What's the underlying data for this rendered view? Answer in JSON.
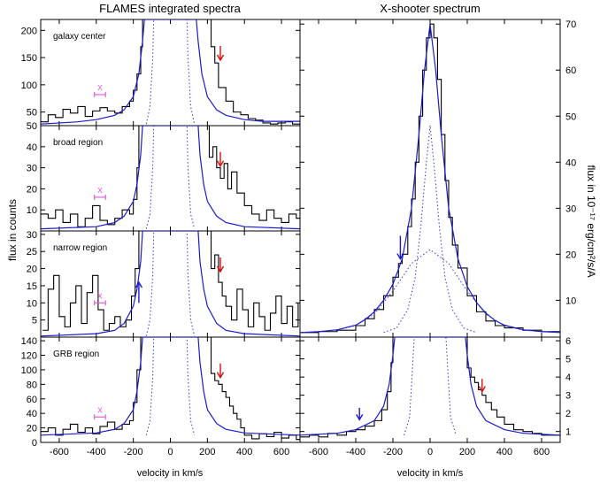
{
  "title_left": "FLAMES integrated spectra",
  "title_right": "X-shooter spectrum",
  "ylabel_left": "flux in counts",
  "ylabel_right": "flux in 10⁻¹⁷ erg/cm²/s/A",
  "xlabel": "velocity in km/s",
  "colors": {
    "data": "#000000",
    "fit": "#1a1ad0",
    "components": "#3333dd",
    "arrow_red": "#d01010",
    "arrow_blue": "#1a1ad0",
    "marker": "#e060e0"
  },
  "chart_data": [
    {
      "type": "line",
      "panel": "left-1",
      "label": "galaxy center",
      "xlim": [
        -700,
        700
      ],
      "ylim": [
        25,
        220
      ],
      "yticks": [
        50,
        100,
        150,
        200
      ],
      "xticks": [
        -600,
        -400,
        -200,
        0,
        200,
        400,
        600
      ],
      "marker": {
        "symbol": "x",
        "x": -380,
        "y": 82,
        "err": 30
      },
      "arrows": [
        {
          "color": "red",
          "x": 270,
          "direction": "down"
        }
      ],
      "series": [
        {
          "role": "data",
          "x": [
            -700,
            -660,
            -620,
            -580,
            -540,
            -500,
            -460,
            -420,
            -380,
            -340,
            -300,
            -260,
            -220,
            -200,
            -180,
            -160,
            -150,
            200,
            220,
            240,
            260,
            300,
            340,
            380,
            420,
            460,
            500,
            540,
            580,
            620,
            660,
            700
          ],
          "values": [
            32,
            45,
            40,
            55,
            48,
            60,
            42,
            52,
            58,
            52,
            48,
            60,
            70,
            90,
            120,
            170,
            220,
            220,
            170,
            140,
            95,
            70,
            50,
            45,
            38,
            35,
            30,
            28,
            30,
            32,
            28,
            30
          ]
        },
        {
          "role": "fit",
          "x": [
            -700,
            -500,
            -400,
            -300,
            -250,
            -200,
            -170,
            -150,
            -140,
            140,
            150,
            170,
            200,
            250,
            300,
            400,
            500,
            700
          ],
          "values": [
            28,
            32,
            36,
            44,
            54,
            78,
            120,
            180,
            220,
            220,
            180,
            120,
            78,
            54,
            44,
            36,
            33,
            33
          ]
        },
        {
          "role": "component",
          "x": [
            -130,
            -110,
            -95,
            -90,
            90,
            95,
            110,
            130
          ],
          "values": [
            28,
            60,
            150,
            220,
            220,
            150,
            60,
            28
          ]
        }
      ]
    },
    {
      "type": "line",
      "panel": "left-2",
      "label": "broad region",
      "xlim": [
        -700,
        700
      ],
      "ylim": [
        0,
        50
      ],
      "yticks": [
        10,
        20,
        30,
        40,
        50
      ],
      "xticks": [
        -600,
        -400,
        -200,
        0,
        200,
        400,
        600
      ],
      "marker": {
        "symbol": "x",
        "x": -380,
        "y": 16,
        "err": 30
      },
      "arrows": [
        {
          "color": "red",
          "x": 270,
          "direction": "down"
        }
      ],
      "series": [
        {
          "role": "data",
          "x": [
            -700,
            -660,
            -620,
            -580,
            -540,
            -500,
            -460,
            -420,
            -380,
            -340,
            -300,
            -260,
            -220,
            -200,
            -180,
            -170,
            190,
            210,
            230,
            250,
            270,
            290,
            310,
            330,
            360,
            400,
            440,
            480,
            520,
            560,
            600,
            640,
            680,
            700
          ],
          "values": [
            8,
            6,
            10,
            4,
            8,
            2,
            6,
            12,
            5,
            3,
            6,
            10,
            8,
            15,
            30,
            50,
            50,
            35,
            40,
            30,
            25,
            32,
            20,
            28,
            18,
            12,
            8,
            5,
            10,
            6,
            4,
            8,
            6,
            9
          ]
        },
        {
          "role": "fit",
          "x": [
            -700,
            -400,
            -300,
            -250,
            -200,
            -180,
            -160,
            -150,
            150,
            160,
            180,
            200,
            250,
            300,
            400,
            700
          ],
          "values": [
            1,
            2,
            4,
            7,
            14,
            22,
            36,
            50,
            50,
            36,
            22,
            14,
            7,
            4,
            2,
            1
          ]
        },
        {
          "role": "component",
          "x": [
            -130,
            -110,
            -95,
            -90,
            90,
            95,
            110,
            130
          ],
          "values": [
            1,
            8,
            30,
            50,
            50,
            30,
            8,
            1
          ]
        }
      ]
    },
    {
      "type": "line",
      "panel": "left-3",
      "label": "narrow region",
      "xlim": [
        -700,
        700
      ],
      "ylim": [
        0,
        31
      ],
      "yticks": [
        5,
        10,
        15,
        20,
        25,
        30
      ],
      "xticks": [
        -600,
        -400,
        -200,
        0,
        200,
        400,
        600
      ],
      "marker": {
        "symbol": "x",
        "x": -380,
        "y": 10,
        "err": 30
      },
      "arrows": [
        {
          "color": "red",
          "x": 270,
          "direction": "down"
        },
        {
          "color": "blue",
          "x": -170,
          "direction": "up"
        }
      ],
      "series": [
        {
          "role": "data",
          "x": [
            -690,
            -660,
            -630,
            -600,
            -570,
            -540,
            -510,
            -480,
            -450,
            -420,
            -390,
            -360,
            -330,
            -300,
            -270,
            -240,
            -210,
            -190,
            -170,
            -150,
            200,
            220,
            240,
            260,
            280,
            300,
            330,
            360,
            390,
            420,
            450,
            480,
            510,
            540,
            570,
            600,
            630,
            660,
            690
          ],
          "values": [
            2,
            14,
            18,
            6,
            3,
            10,
            15,
            4,
            13,
            18,
            8,
            2,
            4,
            6,
            3,
            5,
            12,
            20,
            31,
            31,
            31,
            20,
            24,
            16,
            12,
            9,
            5,
            14,
            8,
            3,
            10,
            6,
            2,
            7,
            12,
            4,
            9,
            3,
            10
          ]
        },
        {
          "role": "fit",
          "x": [
            -700,
            -400,
            -300,
            -250,
            -200,
            -180,
            -160,
            -150,
            150,
            160,
            180,
            200,
            250,
            300,
            400,
            700
          ],
          "values": [
            0.3,
            1,
            2,
            4,
            9,
            14,
            22,
            31,
            31,
            22,
            14,
            9,
            4,
            2,
            1,
            0.3
          ]
        },
        {
          "role": "component",
          "x": [
            -130,
            -110,
            -95,
            -90,
            90,
            95,
            110,
            130
          ],
          "values": [
            0.3,
            5,
            18,
            31,
            31,
            18,
            5,
            0.3
          ]
        }
      ]
    },
    {
      "type": "line",
      "panel": "left-4",
      "label": "GRB region",
      "xlim": [
        -700,
        700
      ],
      "ylim": [
        0,
        145
      ],
      "yticks": [
        0,
        20,
        40,
        60,
        80,
        100,
        120,
        140
      ],
      "xticks": [
        -600,
        -400,
        -200,
        0,
        200,
        400,
        600
      ],
      "xticklabels": [
        "-600",
        "-400",
        "-200",
        "0",
        "200",
        "400",
        "600"
      ],
      "marker": {
        "symbol": "x",
        "x": -380,
        "y": 35,
        "err": 30
      },
      "arrows": [
        {
          "color": "red",
          "x": 270,
          "direction": "down"
        }
      ],
      "series": [
        {
          "role": "data",
          "x": [
            -700,
            -660,
            -620,
            -580,
            -540,
            -500,
            -460,
            -420,
            -380,
            -340,
            -300,
            -260,
            -220,
            -200,
            -180,
            -160,
            200,
            220,
            240,
            260,
            280,
            300,
            320,
            340,
            360,
            380,
            400,
            440,
            480,
            520,
            560,
            600,
            640,
            680,
            700
          ],
          "values": [
            15,
            20,
            10,
            18,
            25,
            14,
            20,
            12,
            22,
            28,
            18,
            25,
            30,
            55,
            100,
            145,
            145,
            95,
            85,
            80,
            70,
            62,
            50,
            40,
            32,
            20,
            10,
            5,
            12,
            8,
            14,
            6,
            10,
            4,
            8
          ]
        },
        {
          "role": "fit",
          "x": [
            -700,
            -400,
            -300,
            -250,
            -200,
            -180,
            -160,
            -150,
            150,
            160,
            180,
            200,
            250,
            300,
            400,
            700
          ],
          "values": [
            10,
            13,
            18,
            26,
            45,
            70,
            110,
            145,
            145,
            110,
            70,
            45,
            26,
            18,
            13,
            10
          ]
        },
        {
          "role": "component",
          "x": [
            -130,
            -110,
            -95,
            -90,
            90,
            95,
            110,
            130
          ],
          "values": [
            10,
            30,
            90,
            145,
            145,
            90,
            30,
            10
          ]
        }
      ]
    },
    {
      "type": "line",
      "panel": "right-top",
      "xlim": [
        -700,
        700
      ],
      "ylim": [
        2,
        71
      ],
      "yticks": [
        10,
        20,
        30,
        40,
        50,
        60,
        70
      ],
      "xticks": [
        -600,
        -400,
        -200,
        0,
        200,
        400,
        600
      ],
      "arrows": [
        {
          "color": "blue",
          "x": -160,
          "direction": "down"
        }
      ],
      "series": [
        {
          "role": "data",
          "x": [
            -700,
            -600,
            -500,
            -400,
            -350,
            -300,
            -250,
            -200,
            -170,
            -150,
            -120,
            -100,
            -80,
            -60,
            -40,
            -20,
            0,
            20,
            40,
            60,
            80,
            100,
            120,
            150,
            200,
            250,
            300,
            350,
            400,
            500,
            600,
            700
          ],
          "values": [
            3,
            3.2,
            3.5,
            4.5,
            6,
            8,
            11,
            15,
            18,
            20,
            26,
            32,
            40,
            50,
            60,
            67,
            70,
            67,
            58,
            46,
            36,
            28,
            22,
            17,
            11,
            7.5,
            5.5,
            4.5,
            4,
            3.5,
            3.2,
            3
          ]
        },
        {
          "role": "fit",
          "x": [
            -700,
            -600,
            -500,
            -400,
            -350,
            -300,
            -250,
            -200,
            -150,
            -100,
            -60,
            -30,
            0,
            30,
            60,
            100,
            150,
            200,
            250,
            300,
            350,
            400,
            500,
            600,
            700
          ],
          "values": [
            3,
            3.2,
            3.6,
            4.6,
            5.8,
            7.5,
            10,
            13.5,
            19,
            30,
            46,
            60,
            70,
            60,
            46,
            30,
            19,
            13,
            9.5,
            7.2,
            5.6,
            4.6,
            3.6,
            3.2,
            3
          ]
        },
        {
          "role": "component",
          "x": [
            -250,
            -180,
            -120,
            -80,
            -50,
            -20,
            0,
            20,
            50,
            80,
            120,
            180,
            250
          ],
          "values": [
            3,
            4,
            8,
            15,
            26,
            40,
            48,
            40,
            26,
            15,
            8,
            4,
            3
          ]
        },
        {
          "role": "component",
          "x": [
            -700,
            -500,
            -400,
            -300,
            -200,
            -100,
            0,
            100,
            200,
            300,
            400,
            500,
            700
          ],
          "values": [
            3,
            3.5,
            4.5,
            7,
            12,
            18,
            21,
            18,
            12,
            7,
            4.5,
            3.5,
            3
          ]
        }
      ]
    },
    {
      "type": "line",
      "panel": "right-bottom",
      "xlim": [
        -700,
        700
      ],
      "ylim": [
        0.4,
        6.2
      ],
      "yticks": [
        1,
        2,
        3,
        4,
        5,
        6
      ],
      "xticks": [
        -600,
        -400,
        -200,
        0,
        200,
        400,
        600
      ],
      "xticklabels": [
        "-600",
        "-400",
        "-200",
        "0",
        "200",
        "400",
        "600"
      ],
      "arrows": [
        {
          "color": "blue",
          "x": -380,
          "direction": "down"
        },
        {
          "color": "red",
          "x": 280,
          "direction": "down"
        }
      ],
      "series": [
        {
          "role": "data",
          "x": [
            -700,
            -650,
            -600,
            -550,
            -500,
            -450,
            -400,
            -350,
            -300,
            -260,
            -230,
            -210,
            -200,
            -190,
            170,
            180,
            200,
            220,
            240,
            260,
            280,
            300,
            330,
            360,
            400,
            450,
            500,
            550,
            600,
            650,
            700
          ],
          "values": [
            0.7,
            0.8,
            0.7,
            0.9,
            0.8,
            1.0,
            1.1,
            1.3,
            1.6,
            2.2,
            3.2,
            4.8,
            6.2,
            6.2,
            6.2,
            6.2,
            4.5,
            4.0,
            3.7,
            3.3,
            3.0,
            2.6,
            2.2,
            1.8,
            1.4,
            1.1,
            1.0,
            0.9,
            0.8,
            0.8,
            0.7
          ]
        },
        {
          "role": "fit",
          "x": [
            -700,
            -500,
            -400,
            -300,
            -250,
            -220,
            -200,
            -190,
            190,
            200,
            220,
            250,
            300,
            400,
            500,
            700
          ],
          "values": [
            0.8,
            0.9,
            1.1,
            1.6,
            2.4,
            3.6,
            5.2,
            6.2,
            6.2,
            5.2,
            3.6,
            2.4,
            1.6,
            1.1,
            0.9,
            0.8
          ]
        },
        {
          "role": "component",
          "x": [
            -140,
            -110,
            -95,
            -85,
            85,
            95,
            110,
            140
          ],
          "values": [
            0.8,
            1.8,
            4.5,
            6.2,
            6.2,
            4.5,
            1.8,
            0.8
          ]
        }
      ]
    }
  ]
}
